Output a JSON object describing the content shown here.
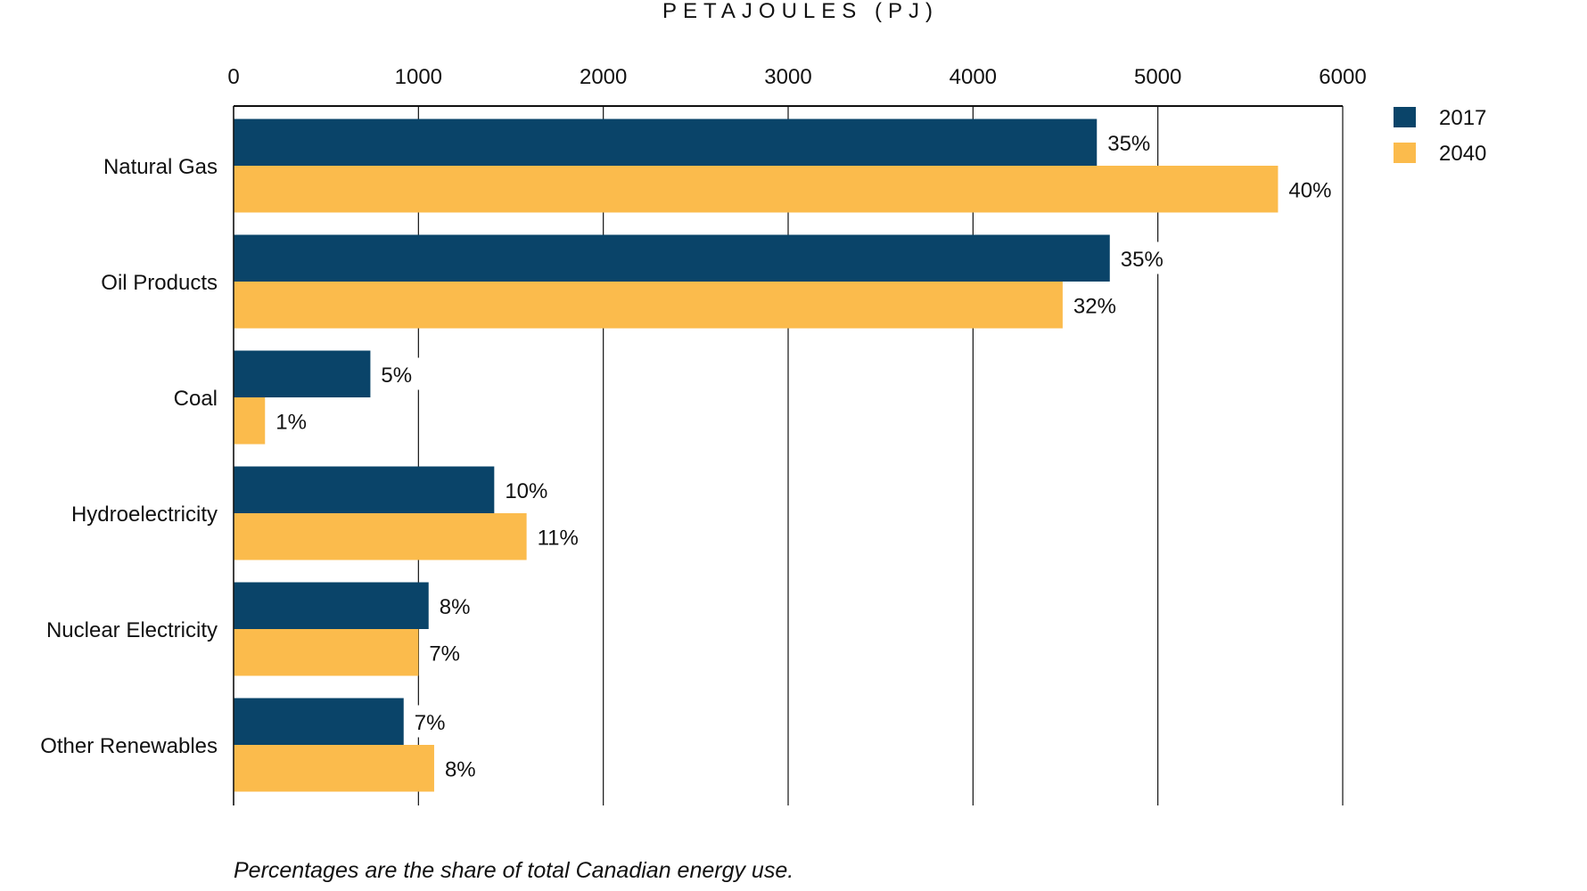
{
  "chart_data": {
    "type": "bar",
    "orientation": "horizontal",
    "title": "PETAJOULES (PJ)",
    "footnote": "Percentages are the share of total Canadian energy use.",
    "categories": [
      "Natural Gas",
      "Oil Products",
      "Coal",
      "Hydroelectricity",
      "Nuclear Electricity",
      "Other Renewables"
    ],
    "xlim": [
      0,
      6000
    ],
    "x_ticks": [
      "0",
      "1000",
      "2000",
      "3000",
      "4000",
      "5000",
      "6000"
    ],
    "axis_position": "top",
    "grid": true,
    "legend_position": "top-right",
    "series": [
      {
        "name": "2017",
        "color": "#0a4469",
        "values": [
          4670,
          4740,
          740,
          1410,
          1055,
          920
        ],
        "labels": [
          "35%",
          "35%",
          "5%",
          "10%",
          "8%",
          "7%"
        ]
      },
      {
        "name": "2040",
        "color": "#fbbb4c",
        "values": [
          5650,
          4485,
          170,
          1585,
          1000,
          1085
        ],
        "labels": [
          "40%",
          "32%",
          "1%",
          "11%",
          "7%",
          "8%"
        ]
      }
    ]
  }
}
